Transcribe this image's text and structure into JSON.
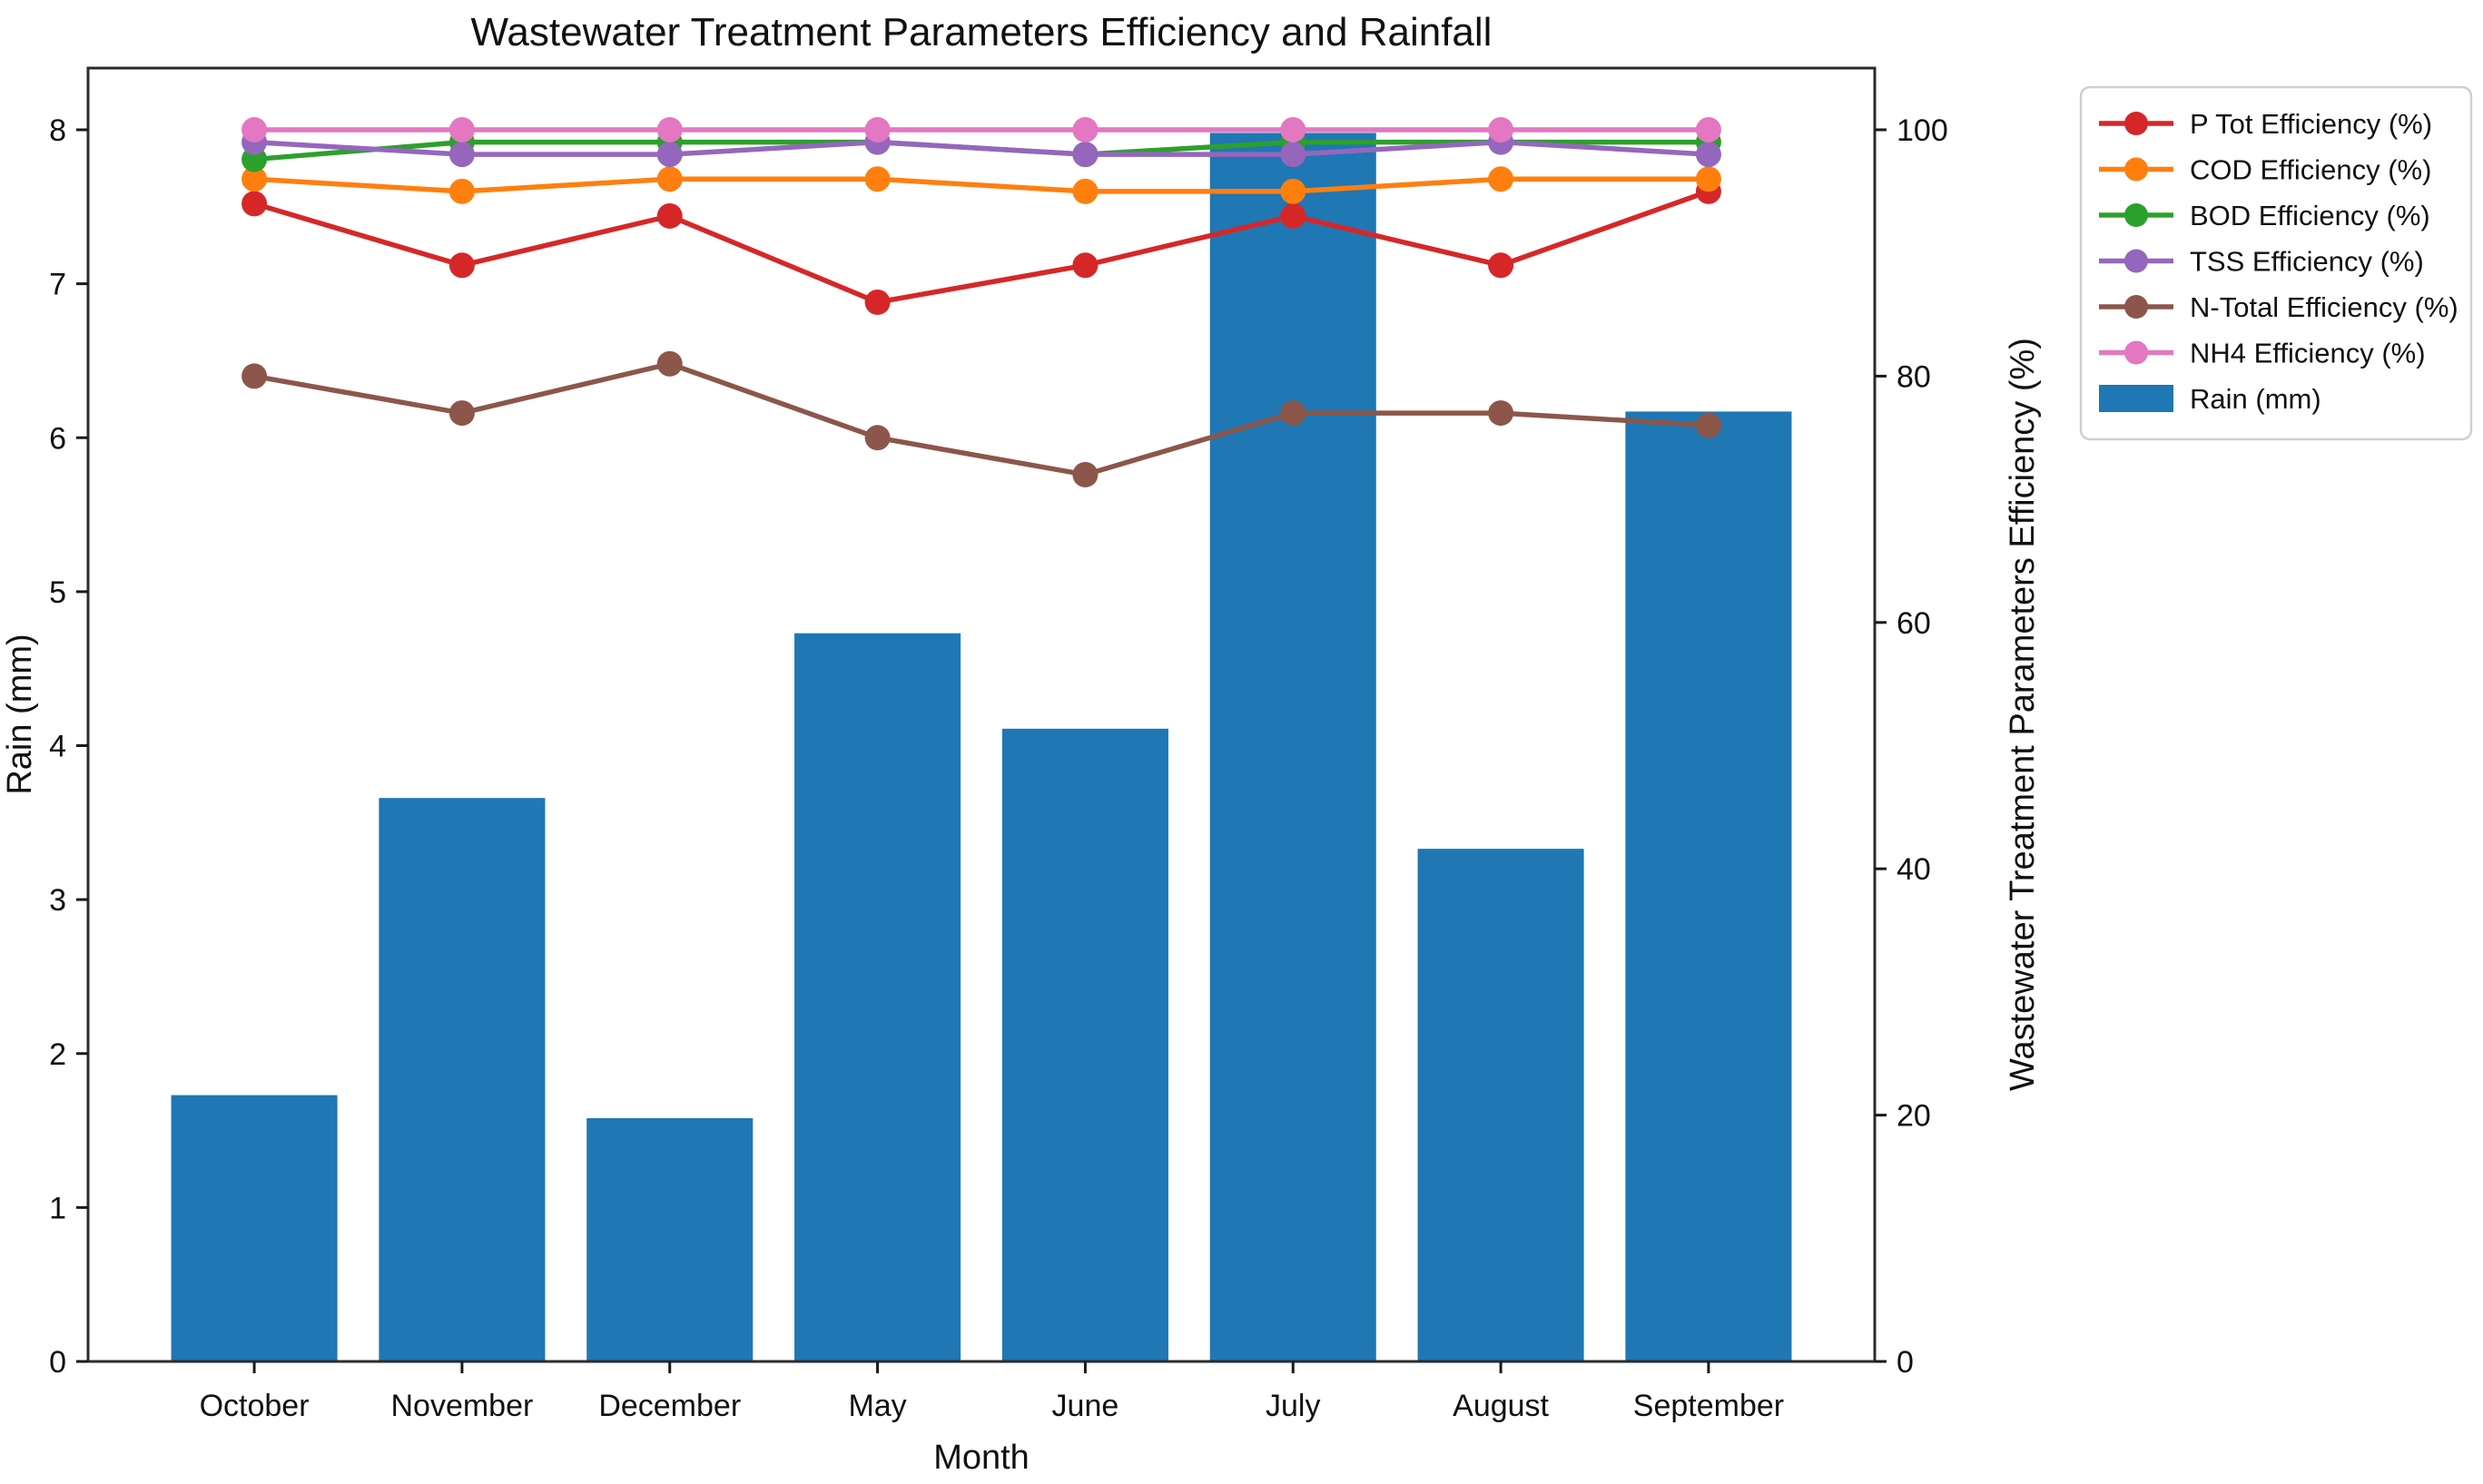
{
  "figure": {
    "background": "#ffffff"
  },
  "chart_data": {
    "type": "bar+line dual-axis",
    "title": "Wastewater Treatment Parameters Efficiency and Rainfall",
    "categories": [
      "October",
      "November",
      "December",
      "May",
      "June",
      "July",
      "August",
      "September"
    ],
    "xlabel": "Month",
    "left_axis": {
      "label": "Rain (mm)",
      "ticks": [
        0,
        1,
        2,
        3,
        4,
        5,
        6,
        7,
        8
      ],
      "lim": [
        0,
        8.4
      ],
      "grid": false
    },
    "right_axis": {
      "label": "Wastewater Treatment Parameters Efficiency (%)",
      "ticks": [
        0,
        20,
        40,
        60,
        80,
        100
      ],
      "lim": [
        0,
        105
      ],
      "grid": false
    },
    "bars": {
      "name": "Rain (mm)",
      "axis": "left",
      "color": "#1f77b4",
      "values": [
        1.73,
        3.66,
        1.58,
        4.73,
        4.11,
        7.98,
        3.33,
        6.17
      ]
    },
    "series": [
      {
        "name": "P Tot Efficiency (%)",
        "axis": "right",
        "color": "#d62728",
        "marker": "circle",
        "values": [
          94,
          89,
          93,
          86,
          89,
          93,
          89,
          95
        ]
      },
      {
        "name": "COD Efficiency (%)",
        "axis": "right",
        "color": "#ff7f0e",
        "marker": "circle",
        "values": [
          96,
          95,
          96,
          96,
          95,
          95,
          96,
          96
        ]
      },
      {
        "name": "BOD Efficiency (%)",
        "axis": "right",
        "color": "#2ca02c",
        "marker": "circle",
        "values": [
          97.6,
          99,
          99,
          99,
          98,
          99,
          99,
          99
        ]
      },
      {
        "name": "TSS Efficiency (%)",
        "axis": "right",
        "color": "#9467bd",
        "marker": "circle",
        "values": [
          99,
          98,
          98,
          99,
          98,
          98,
          99,
          98
        ]
      },
      {
        "name": "N-Total Efficiency (%)",
        "axis": "right",
        "color": "#8c564b",
        "marker": "circle",
        "values": [
          80,
          77,
          81,
          75,
          72,
          77,
          77,
          76
        ]
      },
      {
        "name": "NH4 Efficiency (%)",
        "axis": "right",
        "color": "#e377c2",
        "marker": "circle",
        "values": [
          100,
          100,
          100,
          100,
          100,
          100,
          100,
          100
        ]
      }
    ],
    "legend": {
      "position": "upper-right outside plot",
      "entries": [
        "P Tot Efficiency (%)",
        "COD Efficiency (%)",
        "BOD Efficiency (%)",
        "TSS Efficiency (%)",
        "N-Total Efficiency (%)",
        "NH4 Efficiency (%)",
        "Rain (mm)"
      ]
    },
    "style": {
      "spine_color": "#2b2b2b",
      "tick_color": "#1a1a1a",
      "legend_border_color": "#cfcfcf",
      "legend_bg_color": "#ffffff"
    }
  }
}
